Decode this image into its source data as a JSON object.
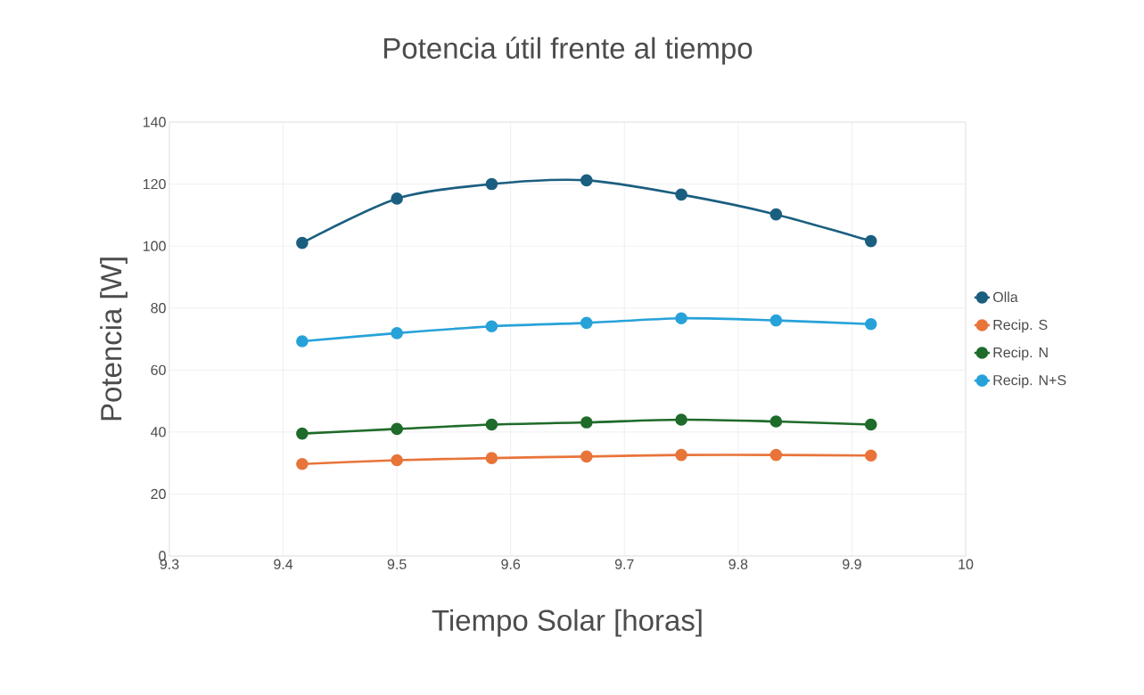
{
  "chart_data": {
    "type": "line",
    "title": "Potencia útil frente al tiempo",
    "xlabel": "Tiempo Solar [horas]",
    "ylabel": "Potencia [W]",
    "x": [
      9.4167,
      9.5,
      9.5833,
      9.6667,
      9.75,
      9.8333,
      9.9167
    ],
    "series": [
      {
        "name": "Olla",
        "color": "#1b5f80",
        "values": [
          101.0,
          115.3,
          120.0,
          121.2,
          116.6,
          110.2,
          101.6
        ]
      },
      {
        "name": "Recip. S",
        "color": "#e8743a",
        "values": [
          29.7,
          30.9,
          31.6,
          32.1,
          32.6,
          32.6,
          32.4
        ]
      },
      {
        "name": "Recip. N",
        "color": "#1e6b2a",
        "values": [
          39.5,
          41.0,
          42.4,
          43.1,
          44.0,
          43.4,
          42.4
        ]
      },
      {
        "name": "Recip. N+S",
        "color": "#27a2d9",
        "values": [
          69.3,
          71.9,
          74.1,
          75.2,
          76.7,
          76.0,
          74.8
        ]
      }
    ],
    "xlim": [
      9.3,
      10
    ],
    "xticks": [
      9.3,
      9.4,
      9.5,
      9.6,
      9.7,
      9.8,
      9.9,
      10
    ],
    "ylim": [
      0,
      140
    ],
    "yticks": [
      0,
      20,
      40,
      60,
      80,
      100,
      120,
      140
    ],
    "grid": true,
    "legend": "right",
    "marker": "circle",
    "line_style": "solid"
  }
}
